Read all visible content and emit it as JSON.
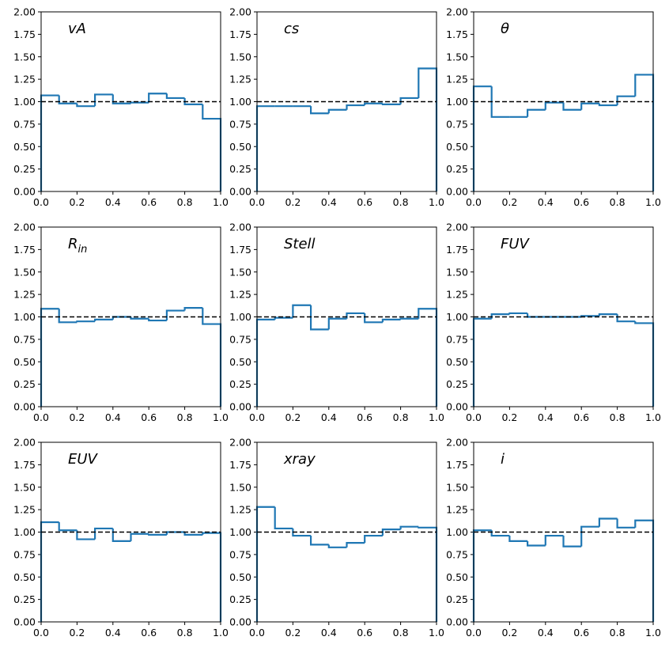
{
  "chart_data": [
    {
      "type": "histogram",
      "title": "vA",
      "bins": [
        0,
        0.1,
        0.2,
        0.3,
        0.4,
        0.5,
        0.6,
        0.7,
        0.8,
        0.9,
        1
      ],
      "values": [
        1.07,
        0.98,
        0.95,
        1.08,
        0.98,
        0.99,
        1.09,
        1.04,
        0.97,
        0.81
      ],
      "color": "#1f77b4",
      "hline": 1,
      "xlim": [
        0,
        1
      ],
      "ylim": [
        0,
        2
      ],
      "xticks": [
        {
          "value": 0,
          "label": "0.0"
        },
        0.2,
        0.4,
        0.6,
        0.8,
        {
          "value": 1,
          "label": "1.0"
        }
      ],
      "yticks": [
        {
          "value": 0,
          "label": "0.00"
        },
        0.25,
        {
          "value": 0.5,
          "label": "0.50"
        },
        0.75,
        {
          "value": 1,
          "label": "1.00"
        },
        1.25,
        {
          "value": 1.5,
          "label": "1.50"
        },
        1.75,
        {
          "value": 2,
          "label": "2.00"
        }
      ]
    },
    {
      "type": "histogram",
      "title": "cs",
      "bins": [
        0,
        0.1,
        0.2,
        0.3,
        0.4,
        0.5,
        0.6,
        0.7,
        0.8,
        0.9,
        1
      ],
      "values": [
        0.95,
        0.95,
        0.95,
        0.87,
        0.91,
        0.96,
        0.98,
        0.97,
        1.04,
        1.37
      ],
      "color": "#1f77b4",
      "hline": 1,
      "xlim": [
        0,
        1
      ],
      "ylim": [
        0,
        2
      ],
      "xticks": [
        {
          "value": 0,
          "label": "0.0"
        },
        0.2,
        0.4,
        0.6,
        0.8,
        {
          "value": 1,
          "label": "1.0"
        }
      ],
      "yticks": [
        {
          "value": 0,
          "label": "0.00"
        },
        0.25,
        {
          "value": 0.5,
          "label": "0.50"
        },
        0.75,
        {
          "value": 1,
          "label": "1.00"
        },
        1.25,
        {
          "value": 1.5,
          "label": "1.50"
        },
        1.75,
        {
          "value": 2,
          "label": "2.00"
        }
      ]
    },
    {
      "type": "histogram",
      "title": "θ",
      "bins": [
        0,
        0.1,
        0.2,
        0.3,
        0.4,
        0.5,
        0.6,
        0.7,
        0.8,
        0.9,
        1
      ],
      "values": [
        1.17,
        0.83,
        0.83,
        0.91,
        0.99,
        0.91,
        0.98,
        0.96,
        1.06,
        1.3
      ],
      "color": "#1f77b4",
      "hline": 1,
      "xlim": [
        0,
        1
      ],
      "ylim": [
        0,
        2
      ],
      "xticks": [
        {
          "value": 0,
          "label": "0.0"
        },
        0.2,
        0.4,
        0.6,
        0.8,
        {
          "value": 1,
          "label": "1.0"
        }
      ],
      "yticks": [
        {
          "value": 0,
          "label": "0.00"
        },
        0.25,
        {
          "value": 0.5,
          "label": "0.50"
        },
        0.75,
        {
          "value": 1,
          "label": "1.00"
        },
        1.25,
        {
          "value": 1.5,
          "label": "1.50"
        },
        1.75,
        {
          "value": 2,
          "label": "2.00"
        }
      ]
    },
    {
      "type": "histogram",
      "title": "R",
      "title_sub": "in",
      "bins": [
        0,
        0.1,
        0.2,
        0.3,
        0.4,
        0.5,
        0.6,
        0.7,
        0.8,
        0.9,
        1
      ],
      "values": [
        1.09,
        0.94,
        0.95,
        0.97,
        1.0,
        0.98,
        0.96,
        1.07,
        1.1,
        0.92
      ],
      "color": "#1f77b4",
      "hline": 1,
      "xlim": [
        0,
        1
      ],
      "ylim": [
        0,
        2
      ],
      "xticks": [
        {
          "value": 0,
          "label": "0.0"
        },
        0.2,
        0.4,
        0.6,
        0.8,
        {
          "value": 1,
          "label": "1.0"
        }
      ],
      "yticks": [
        {
          "value": 0,
          "label": "0.00"
        },
        0.25,
        {
          "value": 0.5,
          "label": "0.50"
        },
        0.75,
        {
          "value": 1,
          "label": "1.00"
        },
        1.25,
        {
          "value": 1.5,
          "label": "1.50"
        },
        1.75,
        {
          "value": 2,
          "label": "2.00"
        }
      ]
    },
    {
      "type": "histogram",
      "title": "Stell",
      "bins": [
        0,
        0.1,
        0.2,
        0.3,
        0.4,
        0.5,
        0.6,
        0.7,
        0.8,
        0.9,
        1
      ],
      "values": [
        0.97,
        0.99,
        1.13,
        0.86,
        0.98,
        1.04,
        0.94,
        0.97,
        0.98,
        1.09
      ],
      "color": "#1f77b4",
      "hline": 1,
      "xlim": [
        0,
        1
      ],
      "ylim": [
        0,
        2
      ],
      "xticks": [
        {
          "value": 0,
          "label": "0.0"
        },
        0.2,
        0.4,
        0.6,
        0.8,
        {
          "value": 1,
          "label": "1.0"
        }
      ],
      "yticks": [
        {
          "value": 0,
          "label": "0.00"
        },
        0.25,
        {
          "value": 0.5,
          "label": "0.50"
        },
        0.75,
        {
          "value": 1,
          "label": "1.00"
        },
        1.25,
        {
          "value": 1.5,
          "label": "1.50"
        },
        1.75,
        {
          "value": 2,
          "label": "2.00"
        }
      ]
    },
    {
      "type": "histogram",
      "title": "FUV",
      "bins": [
        0,
        0.1,
        0.2,
        0.3,
        0.4,
        0.5,
        0.6,
        0.7,
        0.8,
        0.9,
        1
      ],
      "values": [
        0.98,
        1.03,
        1.04,
        1.0,
        1.0,
        1.0,
        1.01,
        1.03,
        0.95,
        0.93
      ],
      "color": "#1f77b4",
      "hline": 1,
      "xlim": [
        0,
        1
      ],
      "ylim": [
        0,
        2
      ],
      "xticks": [
        {
          "value": 0,
          "label": "0.0"
        },
        0.2,
        0.4,
        0.6,
        0.8,
        {
          "value": 1,
          "label": "1.0"
        }
      ],
      "yticks": [
        {
          "value": 0,
          "label": "0.00"
        },
        0.25,
        {
          "value": 0.5,
          "label": "0.50"
        },
        0.75,
        {
          "value": 1,
          "label": "1.00"
        },
        1.25,
        {
          "value": 1.5,
          "label": "1.50"
        },
        1.75,
        {
          "value": 2,
          "label": "2.00"
        }
      ]
    },
    {
      "type": "histogram",
      "title": "EUV",
      "bins": [
        0,
        0.1,
        0.2,
        0.3,
        0.4,
        0.5,
        0.6,
        0.7,
        0.8,
        0.9,
        1
      ],
      "values": [
        1.11,
        1.02,
        0.92,
        1.04,
        0.9,
        0.98,
        0.97,
        1.0,
        0.97,
        0.99
      ],
      "color": "#1f77b4",
      "hline": 1,
      "xlim": [
        0,
        1
      ],
      "ylim": [
        0,
        2
      ],
      "xticks": [
        {
          "value": 0,
          "label": "0.0"
        },
        0.2,
        0.4,
        0.6,
        0.8,
        {
          "value": 1,
          "label": "1.0"
        }
      ],
      "yticks": [
        {
          "value": 0,
          "label": "0.00"
        },
        0.25,
        {
          "value": 0.5,
          "label": "0.50"
        },
        0.75,
        {
          "value": 1,
          "label": "1.00"
        },
        1.25,
        {
          "value": 1.5,
          "label": "1.50"
        },
        1.75,
        {
          "value": 2,
          "label": "2.00"
        }
      ]
    },
    {
      "type": "histogram",
      "title": "xray",
      "bins": [
        0,
        0.1,
        0.2,
        0.3,
        0.4,
        0.5,
        0.6,
        0.7,
        0.8,
        0.9,
        1
      ],
      "values": [
        1.28,
        1.04,
        0.96,
        0.86,
        0.83,
        0.88,
        0.96,
        1.03,
        1.06,
        1.05
      ],
      "color": "#1f77b4",
      "hline": 1,
      "xlim": [
        0,
        1
      ],
      "ylim": [
        0,
        2
      ],
      "xticks": [
        {
          "value": 0,
          "label": "0.0"
        },
        0.2,
        0.4,
        0.6,
        0.8,
        {
          "value": 1,
          "label": "1.0"
        }
      ],
      "yticks": [
        {
          "value": 0,
          "label": "0.00"
        },
        0.25,
        {
          "value": 0.5,
          "label": "0.50"
        },
        0.75,
        {
          "value": 1,
          "label": "1.00"
        },
        1.25,
        {
          "value": 1.5,
          "label": "1.50"
        },
        1.75,
        {
          "value": 2,
          "label": "2.00"
        }
      ]
    },
    {
      "type": "histogram",
      "title": "i",
      "bins": [
        0,
        0.1,
        0.2,
        0.3,
        0.4,
        0.5,
        0.6,
        0.7,
        0.8,
        0.9,
        1
      ],
      "values": [
        1.02,
        0.96,
        0.9,
        0.85,
        0.96,
        0.84,
        1.06,
        1.15,
        1.05,
        1.13
      ],
      "color": "#1f77b4",
      "hline": 1,
      "xlim": [
        0,
        1
      ],
      "ylim": [
        0,
        2
      ],
      "xticks": [
        {
          "value": 0,
          "label": "0.0"
        },
        0.2,
        0.4,
        0.6,
        0.8,
        {
          "value": 1,
          "label": "1.0"
        }
      ],
      "yticks": [
        {
          "value": 0,
          "label": "0.00"
        },
        0.25,
        {
          "value": 0.5,
          "label": "0.50"
        },
        0.75,
        {
          "value": 1,
          "label": "1.00"
        },
        1.25,
        {
          "value": 1.5,
          "label": "1.50"
        },
        1.75,
        {
          "value": 2,
          "label": "2.00"
        }
      ]
    }
  ]
}
